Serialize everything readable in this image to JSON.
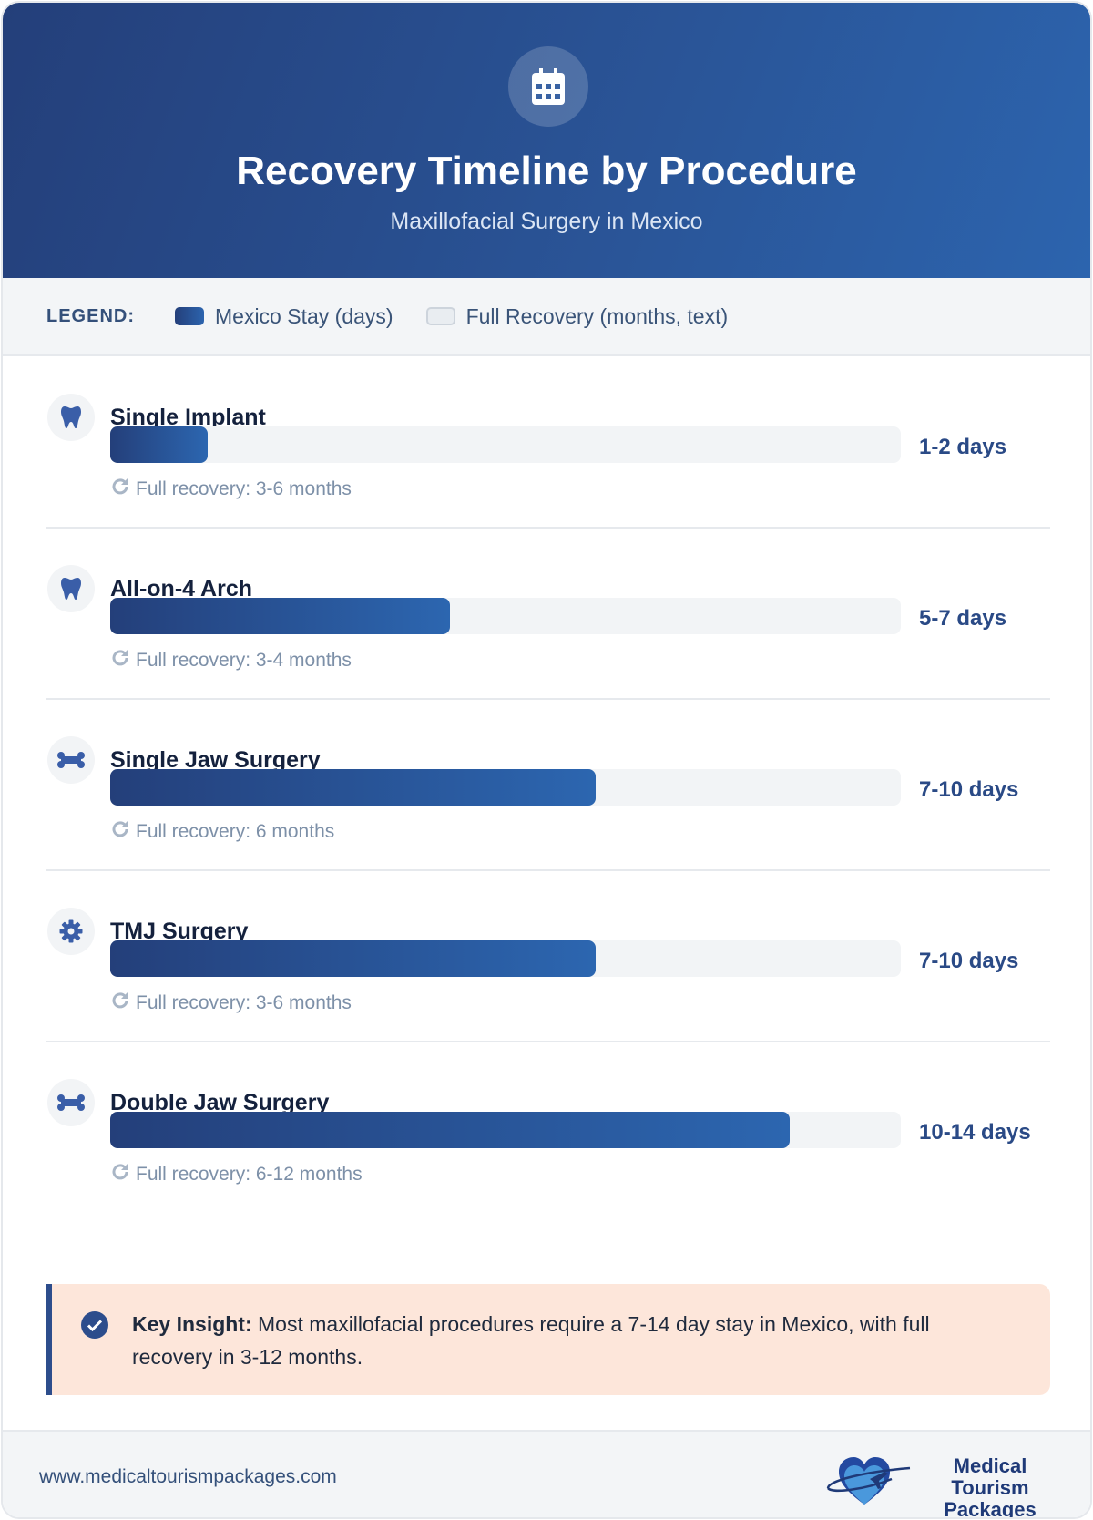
{
  "header": {
    "title": "Recovery Timeline by Procedure",
    "subtitle": "Maxillofacial Surgery in Mexico",
    "icon": "calendar-icon"
  },
  "legend": {
    "label": "LEGEND:",
    "items": [
      {
        "label": "Mexico Stay (days)",
        "color": "#2a5598"
      },
      {
        "label": "Full Recovery (months, text)",
        "color": "#e9edf1"
      }
    ]
  },
  "chart_data": {
    "type": "bar",
    "orientation": "horizontal",
    "categories": [
      "Single Implant",
      "All-on-4 Arch",
      "Single Jaw Surgery",
      "TMJ Surgery",
      "Double Jaw Surgery"
    ],
    "series": [
      {
        "name": "Mexico Stay (days)",
        "values": [
          2,
          7,
          10,
          10,
          14
        ],
        "labels": [
          "1-2 days",
          "5-7 days",
          "7-10 days",
          "7-10 days",
          "10-14 days"
        ]
      }
    ],
    "recovery": [
      "Full recovery: 3-6 months",
      "Full recovery: 3-4 months",
      "Full recovery: 6 months",
      "Full recovery: 3-6 months",
      "Full recovery: 6-12 months"
    ],
    "icons": [
      "tooth-icon",
      "tooth-icon",
      "bone-icon",
      "gear-icon",
      "bone-icon"
    ],
    "xlim": [
      0,
      16.3
    ]
  },
  "insight": {
    "title": "Key Insight:",
    "text": " Most maxillofacial procedures require a 7-14 day stay in Mexico, with full recovery in 3-12 months."
  },
  "footer": {
    "url": "www.medicaltourismpackages.com",
    "logo_line1": "Medical Tourism",
    "logo_line2": "Packages"
  }
}
